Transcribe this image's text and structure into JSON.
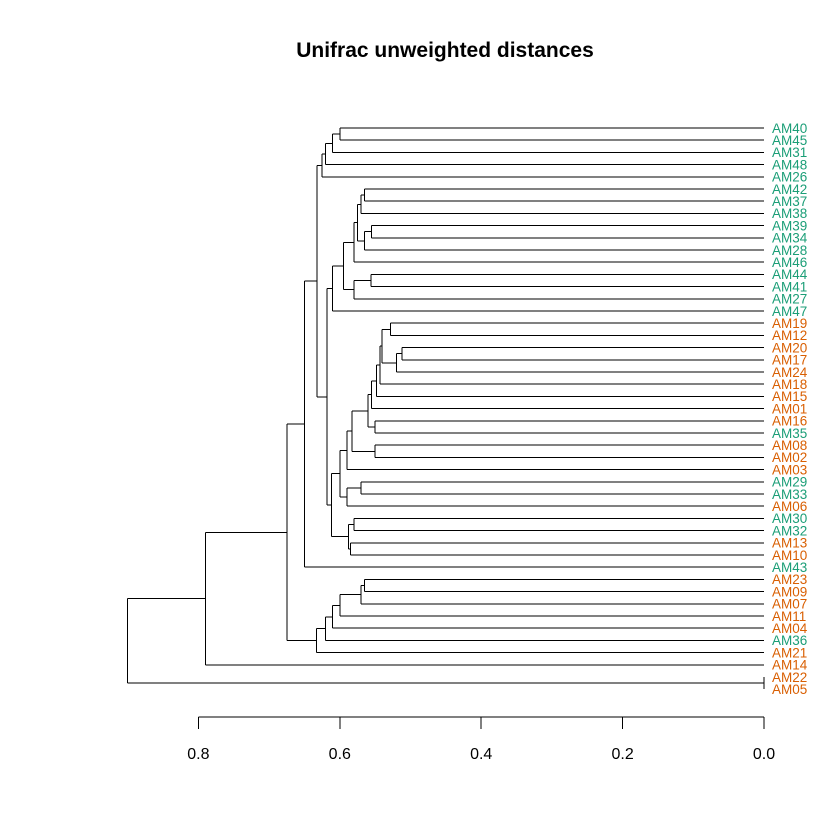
{
  "chart_data": {
    "type": "dendrogram",
    "title": "Unifrac unweighted distances",
    "xlabel": "",
    "ylabel": "",
    "orientation": "horizontal-leaves-right",
    "xlim": [
      0.0,
      0.9
    ],
    "x_reversed": true,
    "ticks": [
      0.8,
      0.6,
      0.4,
      0.2,
      0.0
    ],
    "tick_labels": [
      "0.8",
      "0.6",
      "0.4",
      "0.2",
      "0.0"
    ],
    "group_colors": {
      "teal": "#1b9e77",
      "orange": "#d95f02"
    },
    "leaves": [
      {
        "label": "AM40",
        "group": "teal"
      },
      {
        "label": "AM45",
        "group": "teal"
      },
      {
        "label": "AM31",
        "group": "teal"
      },
      {
        "label": "AM48",
        "group": "teal"
      },
      {
        "label": "AM26",
        "group": "teal"
      },
      {
        "label": "AM42",
        "group": "teal"
      },
      {
        "label": "AM37",
        "group": "teal"
      },
      {
        "label": "AM38",
        "group": "teal"
      },
      {
        "label": "AM39",
        "group": "teal"
      },
      {
        "label": "AM34",
        "group": "teal"
      },
      {
        "label": "AM28",
        "group": "teal"
      },
      {
        "label": "AM46",
        "group": "teal"
      },
      {
        "label": "AM44",
        "group": "teal"
      },
      {
        "label": "AM41",
        "group": "teal"
      },
      {
        "label": "AM27",
        "group": "teal"
      },
      {
        "label": "AM47",
        "group": "teal"
      },
      {
        "label": "AM19",
        "group": "orange"
      },
      {
        "label": "AM12",
        "group": "orange"
      },
      {
        "label": "AM20",
        "group": "orange"
      },
      {
        "label": "AM17",
        "group": "orange"
      },
      {
        "label": "AM24",
        "group": "orange"
      },
      {
        "label": "AM18",
        "group": "orange"
      },
      {
        "label": "AM15",
        "group": "orange"
      },
      {
        "label": "AM01",
        "group": "orange"
      },
      {
        "label": "AM16",
        "group": "orange"
      },
      {
        "label": "AM35",
        "group": "teal"
      },
      {
        "label": "AM08",
        "group": "orange"
      },
      {
        "label": "AM02",
        "group": "orange"
      },
      {
        "label": "AM03",
        "group": "orange"
      },
      {
        "label": "AM29",
        "group": "teal"
      },
      {
        "label": "AM33",
        "group": "teal"
      },
      {
        "label": "AM06",
        "group": "orange"
      },
      {
        "label": "AM30",
        "group": "teal"
      },
      {
        "label": "AM32",
        "group": "teal"
      },
      {
        "label": "AM13",
        "group": "orange"
      },
      {
        "label": "AM10",
        "group": "orange"
      },
      {
        "label": "AM43",
        "group": "teal"
      },
      {
        "label": "AM23",
        "group": "orange"
      },
      {
        "label": "AM09",
        "group": "orange"
      },
      {
        "label": "AM07",
        "group": "orange"
      },
      {
        "label": "AM11",
        "group": "orange"
      },
      {
        "label": "AM04",
        "group": "orange"
      },
      {
        "label": "AM36",
        "group": "teal"
      },
      {
        "label": "AM21",
        "group": "orange"
      },
      {
        "label": "AM14",
        "group": "orange"
      },
      {
        "label": "AM22",
        "group": "orange"
      },
      {
        "label": "AM05",
        "group": "orange"
      }
    ],
    "tree": [
      "n",
      0.9,
      [
        "n",
        0.79,
        [
          "n",
          0.675,
          [
            "n",
            0.65,
            [
              "n",
              0.632,
              [
                "n",
                0.625,
                [
                  "n",
                  0.62,
                  [
                    "n",
                    0.61,
                    [
                      "n",
                      0.6,
                      "AM40",
                      "AM45"
                    ],
                    "AM31"
                  ],
                  "AM48"
                ],
                "AM26"
              ],
              [
                "n",
                0.618,
                [
                  "n",
                  0.61,
                  [
                    "n",
                    0.595,
                    [
                      "n",
                      0.58,
                      [
                        "n",
                        0.575,
                        [
                          "n",
                          0.57,
                          [
                            "n",
                            0.565,
                            "AM42",
                            "AM37"
                          ],
                          "AM38"
                        ],
                        [
                          "n",
                          0.565,
                          [
                            "n",
                            0.555,
                            "AM39",
                            "AM34"
                          ],
                          "AM28"
                        ]
                      ],
                      "AM46"
                    ],
                    [
                      "n",
                      0.58,
                      [
                        "n",
                        0.556,
                        "AM44",
                        "AM41"
                      ],
                      "AM27"
                    ]
                  ],
                  "AM47"
                ],
                [
                  "n",
                  0.612,
                  [
                    "n",
                    0.6,
                    [
                      "n",
                      0.59,
                      [
                        "n",
                        0.583,
                        [
                          "n",
                          0.56,
                          [
                            "n",
                            0.555,
                            [
                              "n",
                              0.548,
                              [
                                "n",
                                0.543,
                                [
                                  "n",
                                  0.54,
                                  [
                                    "n",
                                    0.528,
                                    "AM19",
                                    "AM12"
                                  ],
                                  [
                                    "n",
                                    0.52,
                                    [
                                      "n",
                                      0.512,
                                      "AM20",
                                      "AM17"
                                    ],
                                    "AM24"
                                  ]
                                ],
                                "AM18"
                              ],
                              "AM15"
                            ],
                            "AM01"
                          ],
                          [
                            "n",
                            0.55,
                            "AM16",
                            "AM35"
                          ]
                        ],
                        [
                          "n",
                          0.55,
                          "AM08",
                          "AM02"
                        ]
                      ],
                      "AM03"
                    ],
                    [
                      "n",
                      0.59,
                      [
                        "n",
                        0.57,
                        "AM29",
                        "AM33"
                      ],
                      "AM06"
                    ]
                  ],
                  [
                    "n",
                    0.588,
                    [
                      "n",
                      0.58,
                      "AM30",
                      "AM32"
                    ],
                    [
                      "n",
                      0.585,
                      "AM13",
                      "AM10"
                    ]
                  ]
                ]
              ]
            ],
            "AM43"
          ],
          [
            "n",
            0.633,
            [
              "n",
              0.62,
              [
                "n",
                0.61,
                [
                  "n",
                  0.6,
                  [
                    "n",
                    0.57,
                    [
                      "n",
                      0.565,
                      "AM23",
                      "AM09"
                    ],
                    "AM07"
                  ],
                  "AM11"
                ],
                "AM04"
              ],
              "AM36"
            ],
            "AM21"
          ]
        ],
        "AM14"
      ],
      [
        "n",
        0.0,
        "AM22",
        "AM05"
      ]
    ]
  }
}
